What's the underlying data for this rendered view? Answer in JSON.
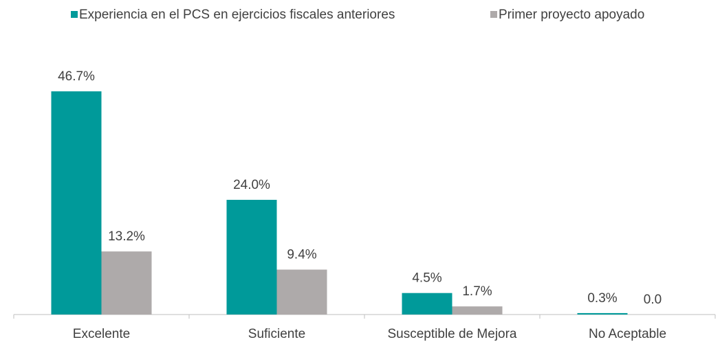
{
  "chart_data": {
    "type": "bar",
    "categories": [
      "Excelente",
      "Suficiente",
      "Susceptible de Mejora",
      "No Aceptable"
    ],
    "series": [
      {
        "name": "Experiencia en el PCS en ejercicios fiscales anteriores",
        "color": "#009a9a",
        "values": [
          46.7,
          24.0,
          4.5,
          0.3
        ],
        "value_labels": [
          "46.7%",
          "24.0%",
          "4.5%",
          "0.3%"
        ]
      },
      {
        "name": "Primer proyecto apoyado",
        "color": "#aeaaaa",
        "values": [
          13.2,
          9.4,
          1.7,
          0.0
        ],
        "value_labels": [
          "13.2%",
          "9.4%",
          "1.7%",
          "0.0"
        ]
      }
    ],
    "legend": "top"
  }
}
